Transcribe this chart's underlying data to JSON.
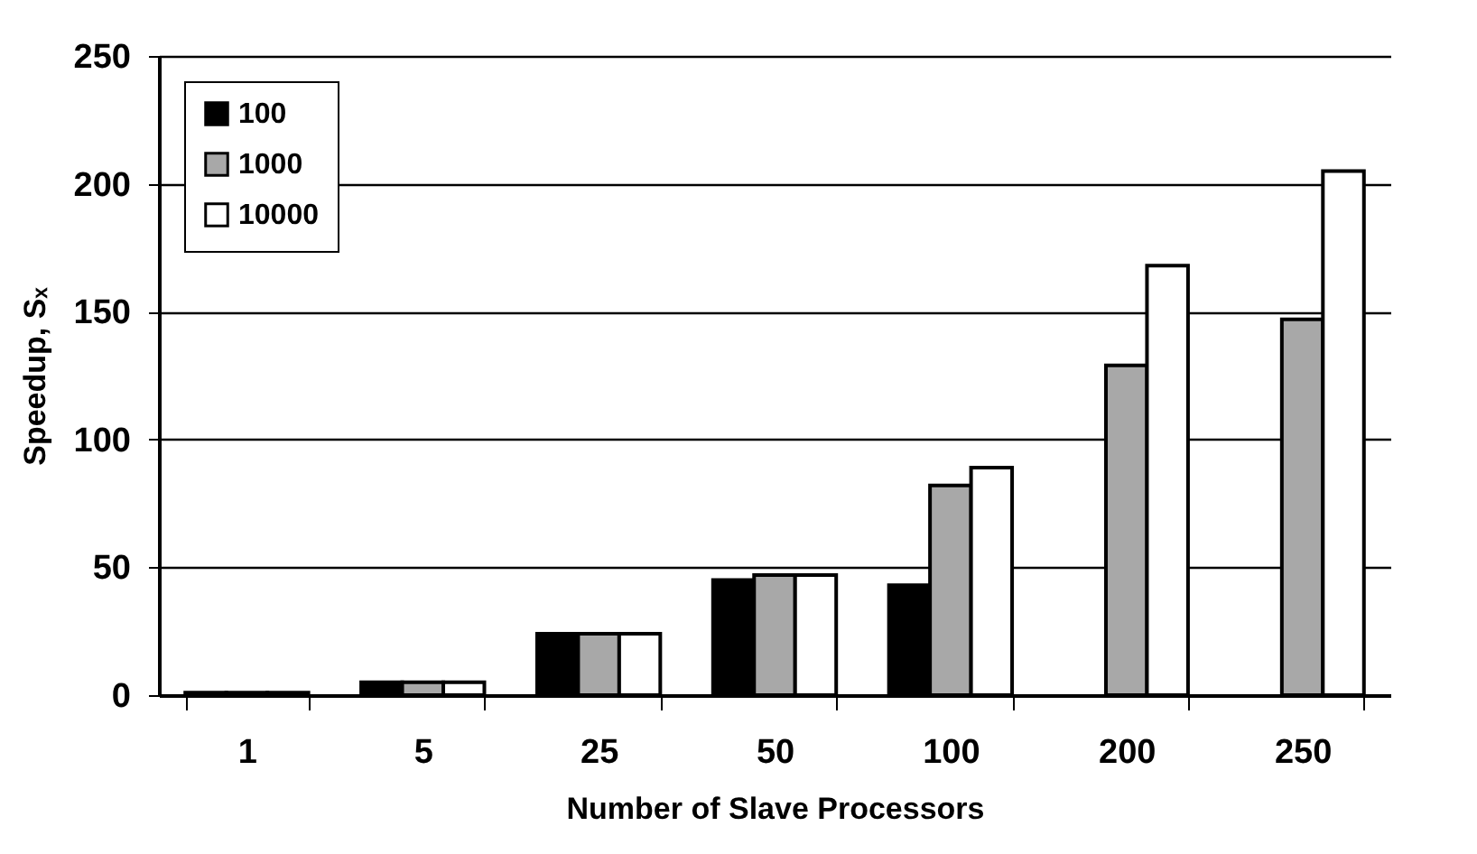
{
  "chart_data": {
    "type": "bar",
    "xlabel": "Number of Slave Processors",
    "ylabel": "Speedup, Sₓ",
    "categories": [
      "1",
      "5",
      "25",
      "50",
      "100",
      "200",
      "250"
    ],
    "series": [
      {
        "name": "100",
        "color": "#000000",
        "values": [
          1,
          5,
          24,
          45,
          43,
          null,
          null
        ]
      },
      {
        "name": "1000",
        "color": "#a8a8a8",
        "values": [
          1,
          5,
          24,
          47,
          82,
          129,
          147
        ]
      },
      {
        "name": "10000",
        "color": "#ffffff",
        "values": [
          1,
          5,
          24,
          47,
          89,
          168,
          205
        ]
      }
    ],
    "ylim": [
      0,
      250
    ],
    "yticks": [
      0,
      50,
      100,
      150,
      200,
      250
    ],
    "grid": "y",
    "legend": "top left"
  }
}
